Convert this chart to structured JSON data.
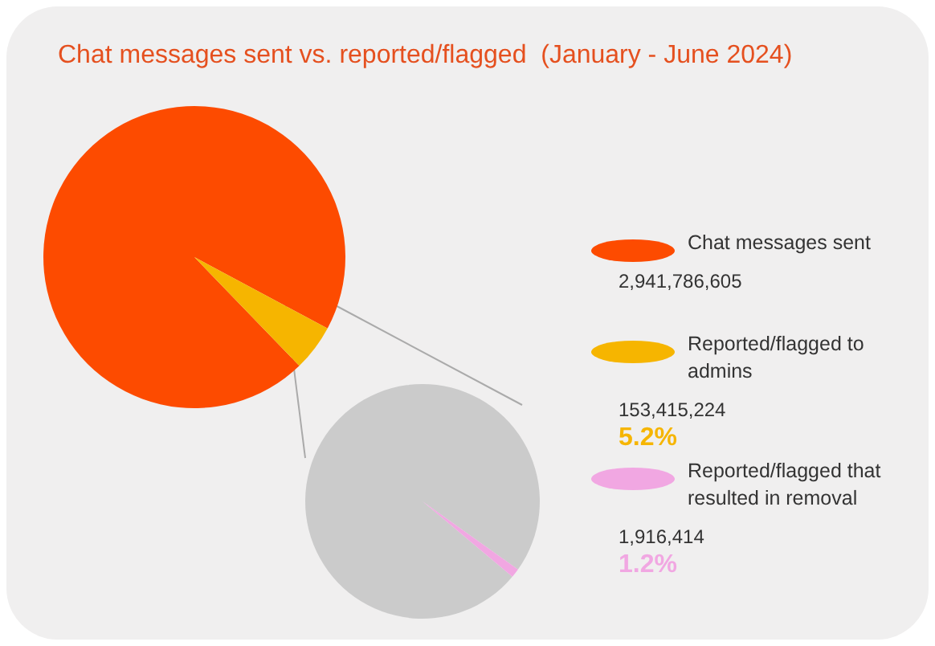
{
  "chart_data": [
    {
      "type": "pie",
      "title": "Chat messages sent vs. reported/flagged  (January - June 2024)",
      "categories": [
        "Chat messages sent",
        "Reported/flagged to admins"
      ],
      "values": [
        2941786605,
        153415224
      ],
      "colors": [
        "#fd4b00",
        "#f6b500"
      ],
      "value_labels": [
        "2,941,786,605",
        "153,415,224"
      ],
      "annotations": [
        "5.2%"
      ],
      "legend": "right"
    },
    {
      "type": "pie",
      "categories": [
        null,
        "Reported/flagged that resulted in removal"
      ],
      "values": [
        151498810,
        1916414
      ],
      "colors": [
        "#cbcbcb",
        "#f1a7e2"
      ],
      "value_labels": [
        null,
        "1,916,414"
      ],
      "annotations": [
        "1.2%"
      ],
      "legend": "right"
    }
  ]
}
